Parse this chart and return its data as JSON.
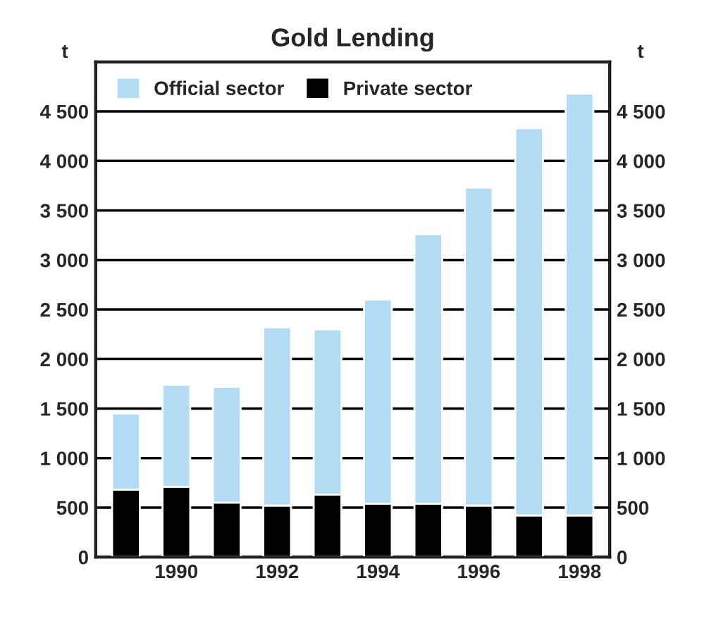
{
  "chart_data": {
    "type": "bar",
    "title": "Gold Lending",
    "ylabel": "t",
    "y2label": "t",
    "categories": [
      null,
      "1990",
      null,
      "1992",
      null,
      "1994",
      null,
      "1996",
      null,
      "1998"
    ],
    "stacked": true,
    "series": [
      {
        "name": "Private sector",
        "color": "#000000",
        "values": [
          680,
          710,
          550,
          520,
          630,
          540,
          540,
          520,
          420,
          420
        ]
      },
      {
        "name": "Official sector",
        "color": "#b3dcf4",
        "values": [
          770,
          1030,
          1170,
          1800,
          1670,
          2060,
          2720,
          3210,
          3910,
          4260
        ]
      }
    ],
    "ylim": [
      0,
      5000
    ],
    "yticks": [
      0,
      500,
      {
        "value": 1000,
        "label": "1 000"
      },
      {
        "value": 1500,
        "label": "1 500"
      },
      {
        "value": 2000,
        "label": "2 000"
      },
      {
        "value": 2500,
        "label": "2 500"
      },
      {
        "value": 3000,
        "label": "3 000"
      },
      {
        "value": 3500,
        "label": "3 500"
      },
      {
        "value": 4000,
        "label": "4 000"
      },
      {
        "value": 4500,
        "label": "4 500"
      }
    ],
    "y2lim": [
      0,
      5000
    ],
    "y2ticks": [
      0,
      500,
      {
        "value": 1000,
        "label": "1 000"
      },
      {
        "value": 1500,
        "label": "1 500"
      },
      {
        "value": 2000,
        "label": "2 000"
      },
      {
        "value": 2500,
        "label": "2 500"
      },
      {
        "value": 3000,
        "label": "3 000"
      },
      {
        "value": 3500,
        "label": "3 500"
      },
      {
        "value": 4000,
        "label": "4 000"
      },
      {
        "value": 4500,
        "label": "4 500"
      }
    ],
    "grid": "y",
    "legend": "top left"
  }
}
